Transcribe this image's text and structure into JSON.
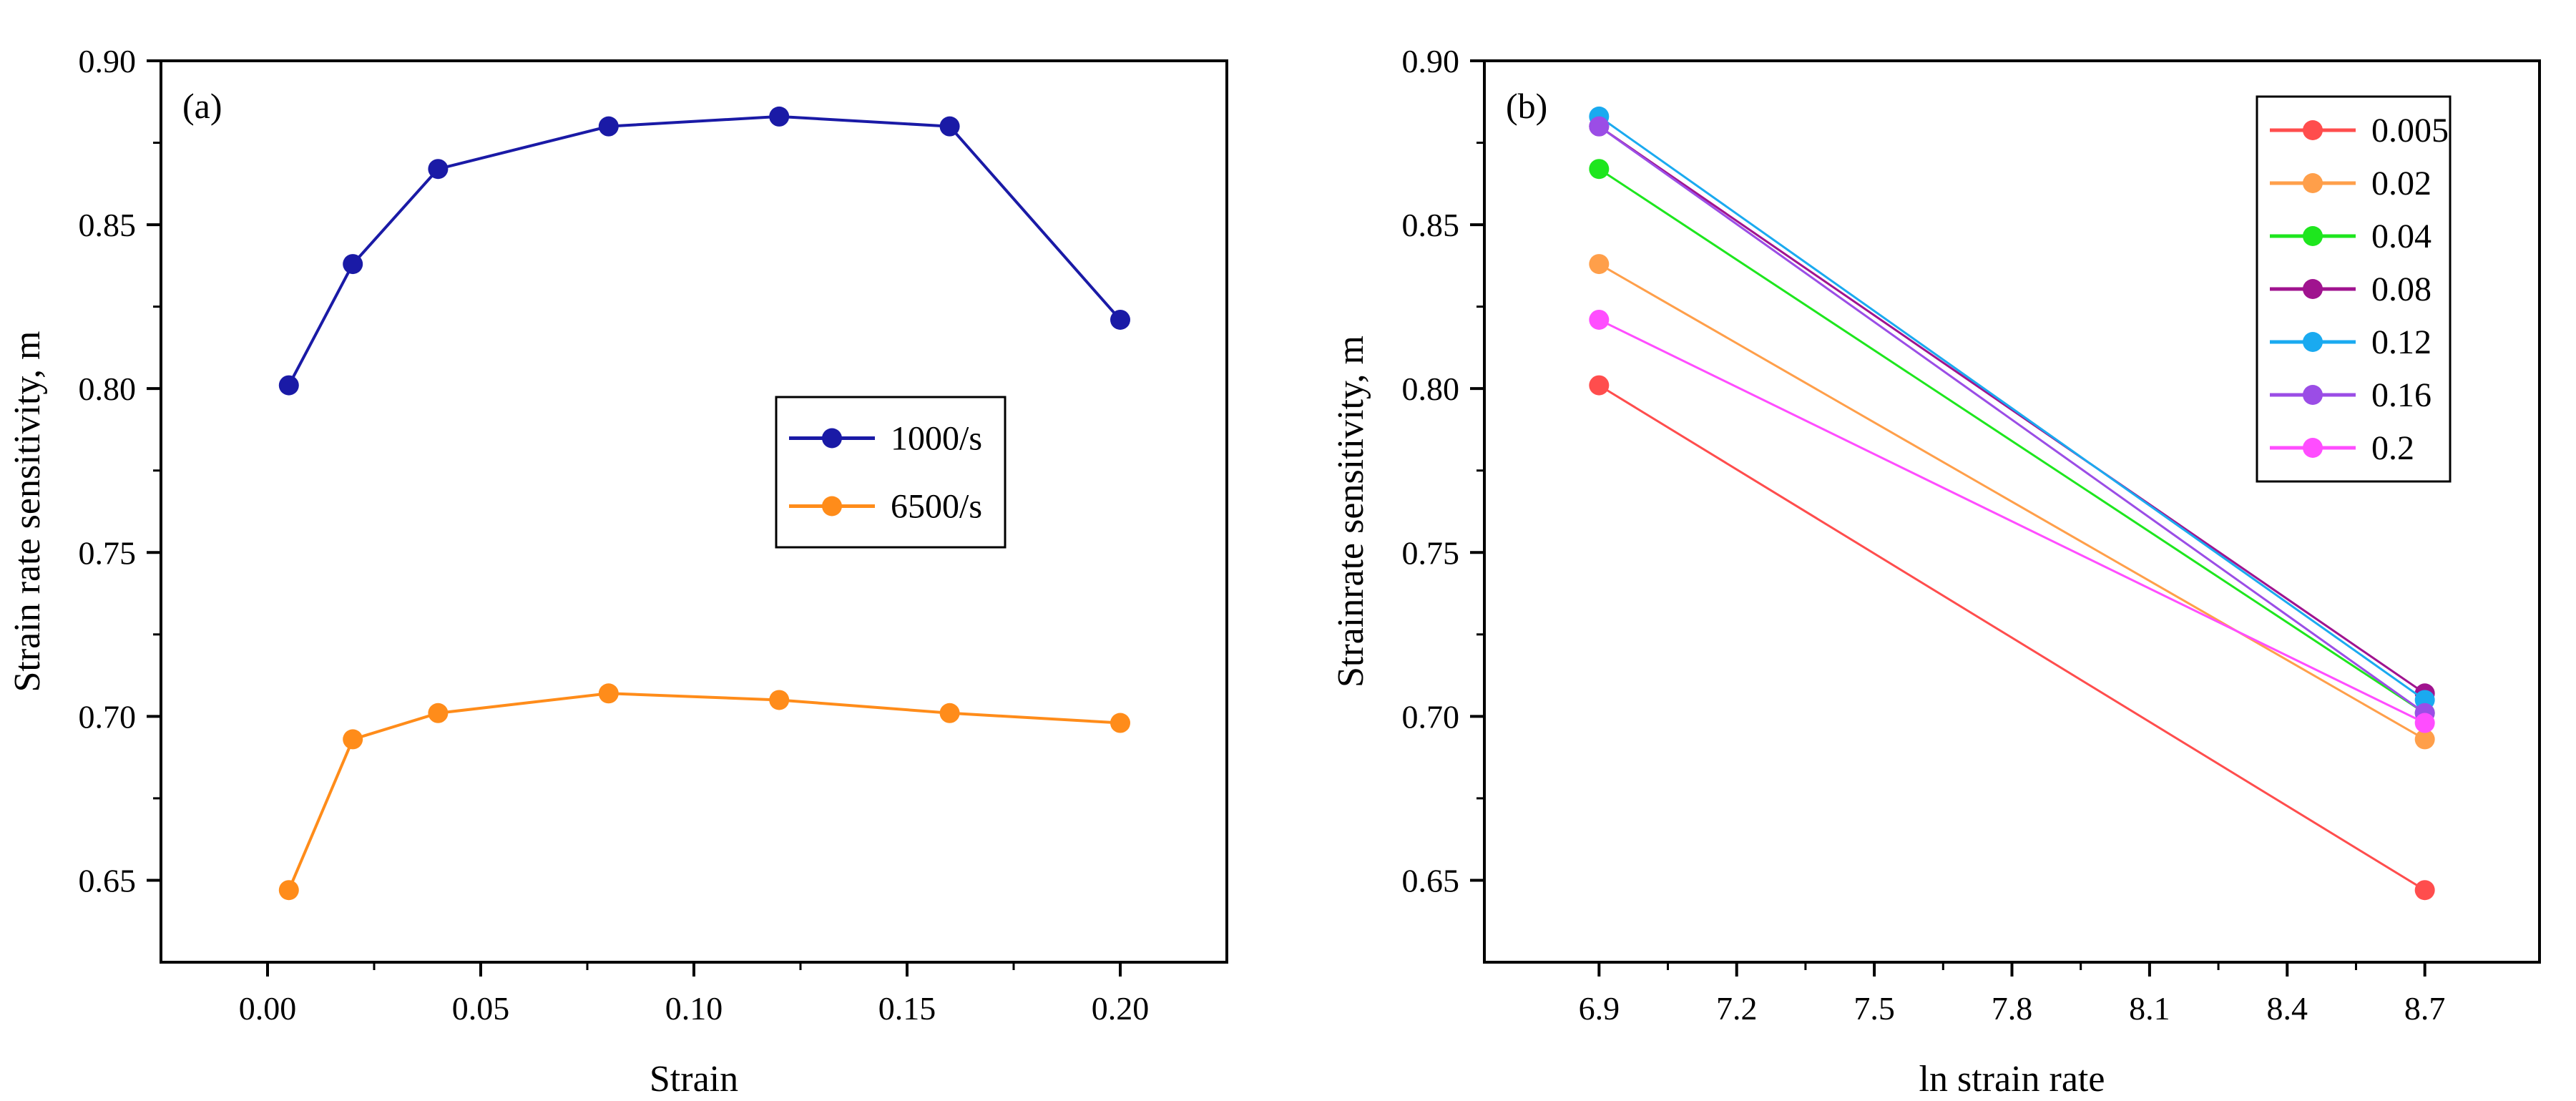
{
  "figure": {
    "panels": [
      {
        "id": "a",
        "tag": "(a)",
        "xlabel": "Strain",
        "ylabel": "Strain rate sensitivity, m"
      },
      {
        "id": "b",
        "tag": "(b)",
        "xlabel": "ln strain rate",
        "ylabel": "Strainrate sensitivity, m"
      }
    ]
  },
  "chart_data": [
    {
      "type": "line",
      "title": "",
      "panel_label": "(a)",
      "xlabel": "Strain",
      "ylabel": "Strain rate sensitivity, m",
      "xlim": [
        -0.025,
        0.225
      ],
      "ylim": [
        0.625,
        0.9
      ],
      "xticks": [
        "0.00",
        "0.05",
        "0.10",
        "0.15",
        "0.20"
      ],
      "yticks": [
        "0.65",
        "0.70",
        "0.75",
        "0.80",
        "0.85",
        "0.90"
      ],
      "grid": false,
      "legend_position": "middle-right",
      "x": [
        0.005,
        0.02,
        0.04,
        0.08,
        0.12,
        0.16,
        0.2
      ],
      "series": [
        {
          "name": "1000/s",
          "color": "#1a1aa6",
          "values": [
            0.801,
            0.838,
            0.867,
            0.88,
            0.883,
            0.88,
            0.821
          ]
        },
        {
          "name": "6500/s",
          "color": "#ff8c1a",
          "values": [
            0.647,
            0.693,
            0.701,
            0.707,
            0.705,
            0.701,
            0.698
          ]
        }
      ]
    },
    {
      "type": "line",
      "title": "",
      "panel_label": "(b)",
      "xlabel": "ln strain rate",
      "ylabel": "Strainrate sensitivity, m",
      "xlim": [
        6.65,
        8.95
      ],
      "ylim": [
        0.625,
        0.9
      ],
      "xticks": [
        "6.9",
        "7.2",
        "7.5",
        "7.8",
        "8.1",
        "8.4",
        "8.7"
      ],
      "yticks": [
        "0.65",
        "0.70",
        "0.75",
        "0.80",
        "0.85",
        "0.90"
      ],
      "grid": false,
      "legend_position": "top-right",
      "x": [
        6.9,
        8.7
      ],
      "series": [
        {
          "name": "0.005",
          "color": "#ff4d4d",
          "values": [
            0.801,
            0.647
          ]
        },
        {
          "name": "0.02",
          "color": "#ff9f4a",
          "values": [
            0.838,
            0.693
          ]
        },
        {
          "name": "0.04",
          "color": "#1ee61e",
          "values": [
            0.867,
            0.701
          ]
        },
        {
          "name": "0.08",
          "color": "#a0138f",
          "values": [
            0.88,
            0.707
          ]
        },
        {
          "name": "0.12",
          "color": "#1aaaf0",
          "values": [
            0.883,
            0.705
          ]
        },
        {
          "name": "0.16",
          "color": "#9b4de6",
          "values": [
            0.88,
            0.701
          ]
        },
        {
          "name": "0.2",
          "color": "#ff4dff",
          "values": [
            0.821,
            0.698
          ]
        }
      ]
    }
  ]
}
